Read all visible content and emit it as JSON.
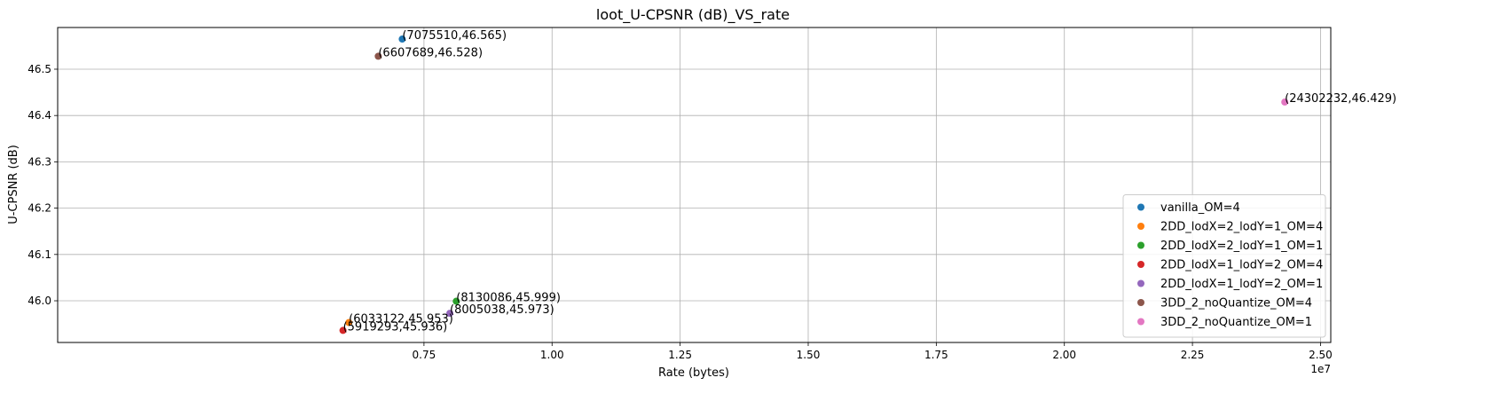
{
  "chart_data": {
    "type": "scatter",
    "title": "loot_U-CPSNR (dB)_VS_rate",
    "xlabel": "Rate (bytes)",
    "ylabel": "U-CPSNR (dB)",
    "x_offset_label": "1e7",
    "xlim": [
      0.035,
      2.52
    ],
    "ylim": [
      45.91,
      46.59
    ],
    "x_ticks": [
      0.75,
      1.0,
      1.25,
      1.5,
      1.75,
      2.0,
      2.25,
      2.5
    ],
    "x_tick_labels": [
      "0.75",
      "1.00",
      "1.25",
      "1.50",
      "1.75",
      "2.00",
      "2.25",
      "2.50"
    ],
    "y_ticks": [
      46.0,
      46.1,
      46.2,
      46.3,
      46.4,
      46.5
    ],
    "y_tick_labels": [
      "46.0",
      "46.1",
      "46.2",
      "46.3",
      "46.4",
      "46.5"
    ],
    "grid": true,
    "legend_position": "lower-right",
    "series": [
      {
        "name": "vanilla_OM=4",
        "color": "#1f77b4",
        "x": 7075510,
        "y": 46.565,
        "label": "(7075510,46.565)"
      },
      {
        "name": "2DD_lodX=2_lodY=1_OM=4",
        "color": "#ff7f0e",
        "x": 6033122,
        "y": 45.953,
        "label": "(6033122,45.953)"
      },
      {
        "name": "2DD_lodX=2_lodY=1_OM=1",
        "color": "#2ca02c",
        "x": 8130086,
        "y": 45.999,
        "label": "(8130086,45.999)"
      },
      {
        "name": "2DD_lodX=1_lodY=2_OM=4",
        "color": "#d62728",
        "x": 5919293,
        "y": 45.936,
        "label": "(5919293,45.936)"
      },
      {
        "name": "2DD_lodX=1_lodY=2_OM=1",
        "color": "#9467bd",
        "x": 8005038,
        "y": 45.973,
        "label": "(8005038,45.973)"
      },
      {
        "name": "3DD_2_noQuantize_OM=4",
        "color": "#8c564b",
        "x": 6607689,
        "y": 46.528,
        "label": "(6607689,46.528)"
      },
      {
        "name": "3DD_2_noQuantize_OM=1",
        "color": "#e377c2",
        "x": 24302232,
        "y": 46.429,
        "label": "(24302232,46.429)"
      }
    ]
  }
}
